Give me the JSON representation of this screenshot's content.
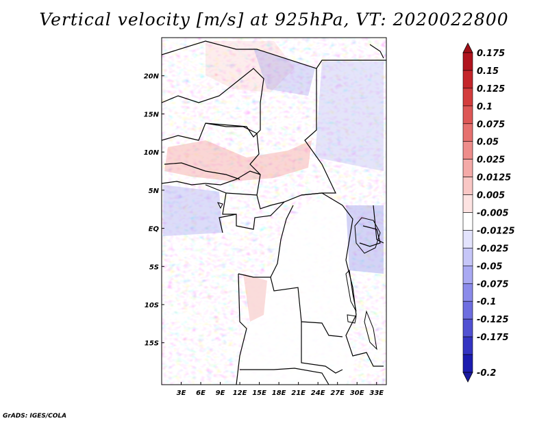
{
  "title": "Vertical velocity [m/s] at 925hPa, VT: 2020022800",
  "credit": "GrADS: IGES/COLA",
  "map": {
    "lon_range": [
      0,
      34.5
    ],
    "lat_range": [
      -20.5,
      25
    ],
    "lon_ticks": [
      {
        "value": 3,
        "label": "3E"
      },
      {
        "value": 6,
        "label": "6E"
      },
      {
        "value": 9,
        "label": "9E"
      },
      {
        "value": 12,
        "label": "12E"
      },
      {
        "value": 15,
        "label": "15E"
      },
      {
        "value": 18,
        "label": "18E"
      },
      {
        "value": 21,
        "label": "21E"
      },
      {
        "value": 24,
        "label": "24E"
      },
      {
        "value": 27,
        "label": "27E"
      },
      {
        "value": 30,
        "label": "30E"
      },
      {
        "value": 33,
        "label": "33E"
      }
    ],
    "lat_ticks": [
      {
        "value": 20,
        "label": "20N"
      },
      {
        "value": 15,
        "label": "15N"
      },
      {
        "value": 10,
        "label": "10N"
      },
      {
        "value": 5,
        "label": "5N"
      },
      {
        "value": 0,
        "label": "EQ"
      },
      {
        "value": -5,
        "label": "5S"
      },
      {
        "value": -10,
        "label": "10S"
      },
      {
        "value": -15,
        "label": "15S"
      }
    ]
  },
  "colorbar": {
    "levels": [
      {
        "label": "0.175",
        "color": "#b0141e"
      },
      {
        "label": "0.15",
        "color": "#c4262b"
      },
      {
        "label": "0.125",
        "color": "#d33d3d"
      },
      {
        "label": "0.1",
        "color": "#dd5756"
      },
      {
        "label": "0.075",
        "color": "#e6716f"
      },
      {
        "label": "0.05",
        "color": "#ee8d8b"
      },
      {
        "label": "0.025",
        "color": "#f4aaa8"
      },
      {
        "label": "0.0125",
        "color": "#f9c7c5"
      },
      {
        "label": "0.005",
        "color": "#fde3e2"
      },
      {
        "label": "-0.005",
        "color": "#ffffff"
      },
      {
        "label": "-0.0125",
        "color": "#e3e3fd"
      },
      {
        "label": "-0.025",
        "color": "#c6c6f8"
      },
      {
        "label": "-0.05",
        "color": "#a9a9f2"
      },
      {
        "label": "-0.075",
        "color": "#8b8bea"
      },
      {
        "label": "-0.1",
        "color": "#6e6ee0"
      },
      {
        "label": "-0.125",
        "color": "#5151d2"
      },
      {
        "label": "-0.175",
        "color": "#3434c2"
      },
      {
        "label": "-0.2",
        "color": "#1c1caf"
      }
    ],
    "top_color": "#a01018",
    "bottom_color": "#1a1aa0"
  }
}
